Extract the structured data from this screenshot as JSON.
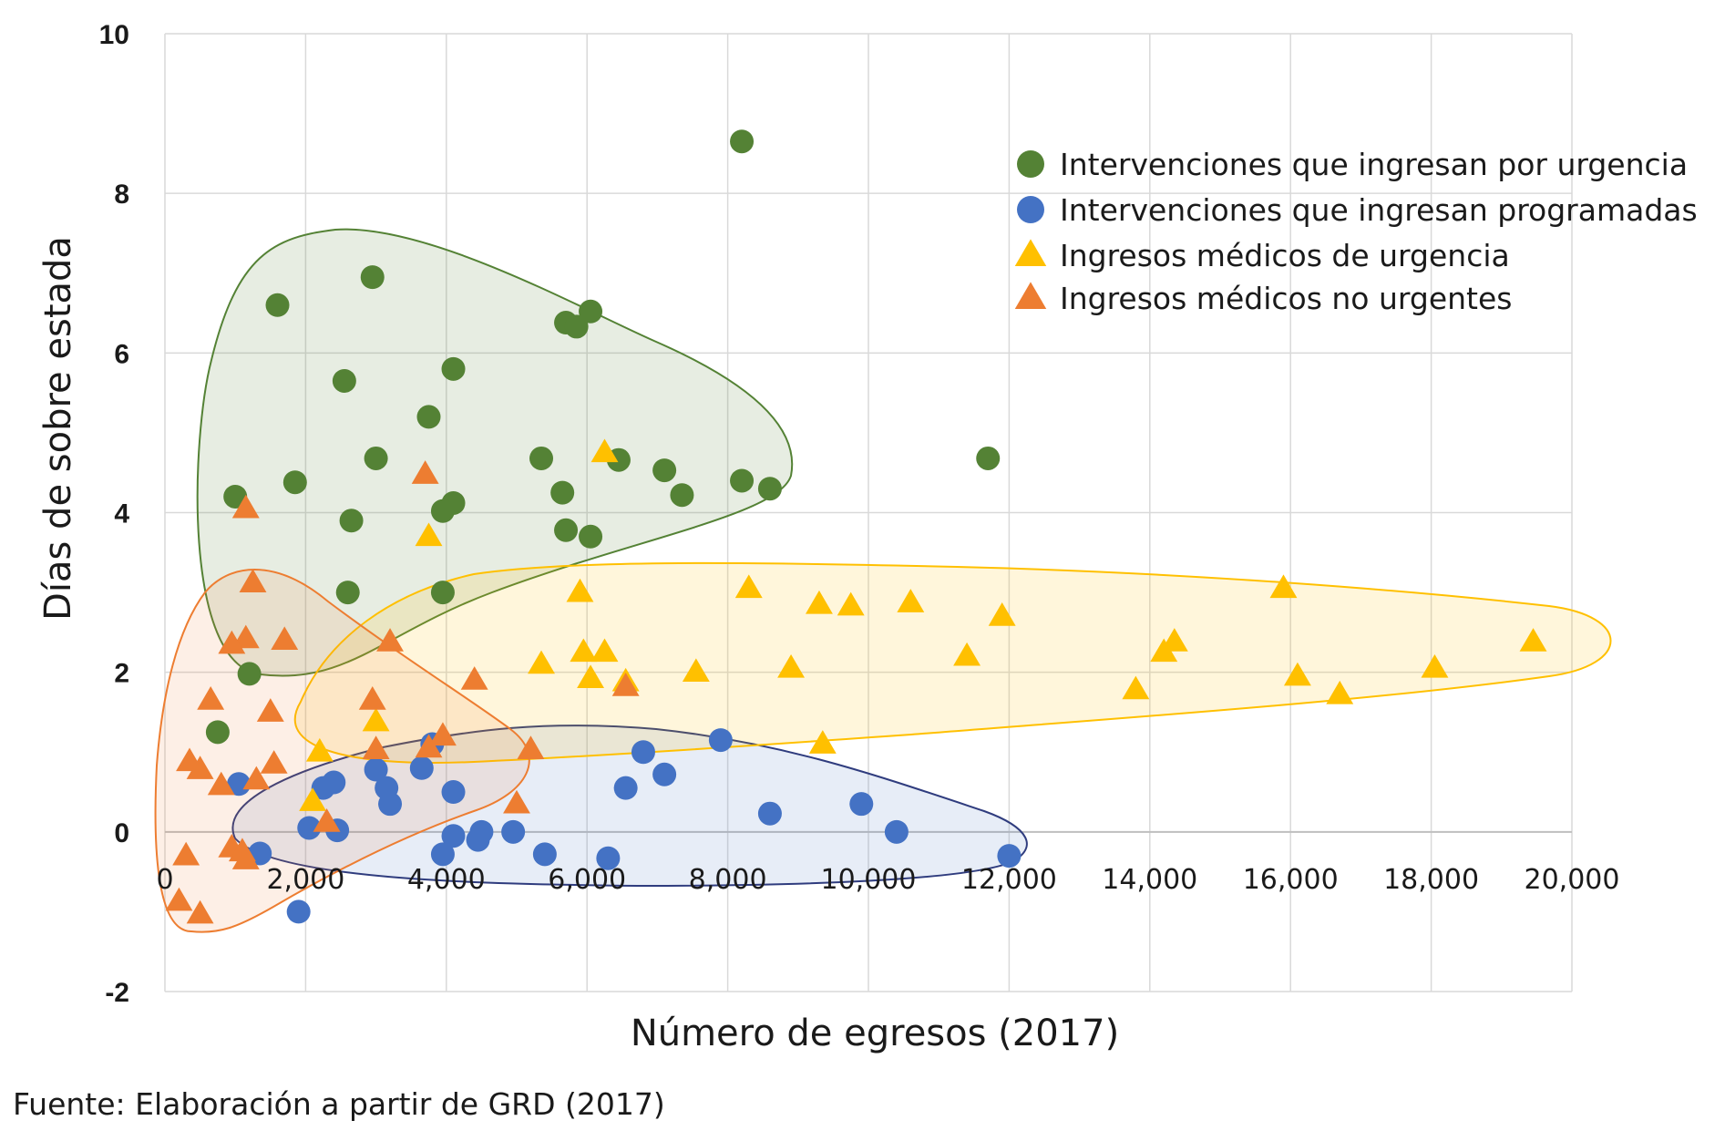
{
  "source_note": "Fuente: Elaboración a partir de GRD (2017)",
  "chart_data": {
    "type": "scatter",
    "title": "",
    "xlabel": "Número de egresos (2017)",
    "ylabel": "Días de sobre estada",
    "xlim": [
      0,
      20000
    ],
    "ylim": [
      -2,
      10
    ],
    "x_ticks": [
      "0",
      "2,000",
      "4,000",
      "6,000",
      "8,000",
      "10,000",
      "12,000",
      "14,000",
      "16,000",
      "18,000",
      "20,000"
    ],
    "y_ticks": [
      "-2",
      "0",
      "2",
      "4",
      "6",
      "8",
      "10"
    ],
    "grid": true,
    "legend_position": "top-right",
    "series": [
      {
        "name": "Intervenciones que ingresan por urgencia",
        "marker": "circle",
        "color": "#548235",
        "points": [
          [
            1600,
            6.6
          ],
          [
            2950,
            6.95
          ],
          [
            5700,
            6.38
          ],
          [
            5850,
            6.33
          ],
          [
            6050,
            6.52
          ],
          [
            2550,
            5.65
          ],
          [
            4100,
            5.8
          ],
          [
            3750,
            5.2
          ],
          [
            8200,
            8.65
          ],
          [
            11700,
            4.68
          ],
          [
            3000,
            4.68
          ],
          [
            5350,
            4.68
          ],
          [
            6450,
            4.66
          ],
          [
            7100,
            4.53
          ],
          [
            8200,
            4.4
          ],
          [
            8600,
            4.3
          ],
          [
            1850,
            4.38
          ],
          [
            1000,
            4.2
          ],
          [
            5650,
            4.25
          ],
          [
            7350,
            4.22
          ],
          [
            4100,
            4.12
          ],
          [
            3950,
            4.02
          ],
          [
            2650,
            3.9
          ],
          [
            5700,
            3.78
          ],
          [
            6050,
            3.7
          ],
          [
            2600,
            3.0
          ],
          [
            3950,
            3.0
          ],
          [
            1200,
            1.98
          ],
          [
            750,
            1.25
          ]
        ]
      },
      {
        "name": "Intervenciones que ingresan programadas",
        "marker": "circle",
        "color": "#4472C4",
        "points": [
          [
            7900,
            1.15
          ],
          [
            3800,
            1.1
          ],
          [
            6800,
            1.0
          ],
          [
            3650,
            0.8
          ],
          [
            3000,
            0.78
          ],
          [
            7100,
            0.72
          ],
          [
            1050,
            0.6
          ],
          [
            2400,
            0.62
          ],
          [
            2250,
            0.55
          ],
          [
            3150,
            0.55
          ],
          [
            4100,
            0.5
          ],
          [
            6550,
            0.55
          ],
          [
            3200,
            0.35
          ],
          [
            9900,
            0.35
          ],
          [
            8600,
            0.23
          ],
          [
            2050,
            0.05
          ],
          [
            2450,
            0.02
          ],
          [
            4950,
            0.0
          ],
          [
            10400,
            0.0
          ],
          [
            4500,
            0.0
          ],
          [
            4450,
            -0.1
          ],
          [
            4100,
            -0.05
          ],
          [
            1350,
            -0.27
          ],
          [
            3950,
            -0.28
          ],
          [
            5400,
            -0.28
          ],
          [
            6300,
            -0.33
          ],
          [
            12000,
            -0.3
          ],
          [
            1900,
            -1.0
          ]
        ]
      },
      {
        "name": "Ingresos médicos de urgencia",
        "marker": "triangle",
        "color": "#FFC000",
        "points": [
          [
            6250,
            4.75
          ],
          [
            3750,
            3.7
          ],
          [
            8300,
            3.05
          ],
          [
            5900,
            3.0
          ],
          [
            15900,
            3.05
          ],
          [
            9300,
            2.85
          ],
          [
            9750,
            2.83
          ],
          [
            10600,
            2.87
          ],
          [
            11900,
            2.7
          ],
          [
            14350,
            2.38
          ],
          [
            19450,
            2.38
          ],
          [
            5950,
            2.25
          ],
          [
            6250,
            2.25
          ],
          [
            14200,
            2.25
          ],
          [
            11400,
            2.2
          ],
          [
            5350,
            2.1
          ],
          [
            8900,
            2.05
          ],
          [
            7550,
            2.0
          ],
          [
            18050,
            2.05
          ],
          [
            6050,
            1.92
          ],
          [
            6550,
            1.88
          ],
          [
            16100,
            1.95
          ],
          [
            13800,
            1.78
          ],
          [
            16700,
            1.72
          ],
          [
            3000,
            1.38
          ],
          [
            9350,
            1.1
          ],
          [
            2200,
            1.0
          ],
          [
            2100,
            0.38
          ]
        ]
      },
      {
        "name": "Ingresos médicos no urgentes",
        "marker": "triangle",
        "color": "#ED7D31",
        "points": [
          [
            3700,
            4.48
          ],
          [
            1150,
            4.05
          ],
          [
            1250,
            3.12
          ],
          [
            3200,
            2.38
          ],
          [
            1700,
            2.4
          ],
          [
            1150,
            2.42
          ],
          [
            950,
            2.35
          ],
          [
            4400,
            1.9
          ],
          [
            6550,
            1.82
          ],
          [
            650,
            1.65
          ],
          [
            2950,
            1.65
          ],
          [
            1500,
            1.5
          ],
          [
            3950,
            1.2
          ],
          [
            3750,
            1.05
          ],
          [
            3000,
            1.03
          ],
          [
            5200,
            1.03
          ],
          [
            350,
            0.88
          ],
          [
            1550,
            0.85
          ],
          [
            500,
            0.78
          ],
          [
            1300,
            0.65
          ],
          [
            800,
            0.58
          ],
          [
            5000,
            0.35
          ],
          [
            2300,
            0.12
          ],
          [
            950,
            -0.2
          ],
          [
            1100,
            -0.25
          ],
          [
            300,
            -0.3
          ],
          [
            1150,
            -0.35
          ],
          [
            200,
            -0.87
          ],
          [
            500,
            -1.03
          ]
        ]
      }
    ]
  }
}
